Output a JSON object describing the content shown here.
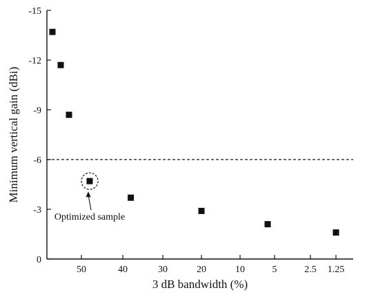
{
  "chart_data": {
    "type": "scatter",
    "title": "",
    "xlabel": "3 dB bandwidth (%)",
    "ylabel": "Minimum vertical gain (dBi)",
    "x_tick_labels": [
      "50",
      "40",
      "30",
      "20",
      "10",
      "5",
      "2.5",
      "1.25"
    ],
    "y_tick_labels": [
      "0",
      "-3",
      "-6",
      "-9",
      "-12",
      "-15"
    ],
    "y_ticks": [
      0,
      -3,
      -6,
      -9,
      -12,
      -15
    ],
    "ylim": [
      0,
      -15
    ],
    "x_scale": "categorical (non-linear, decreasing bandwidth)",
    "y_inverted": true,
    "grid": false,
    "reference_line": {
      "y": -6,
      "style": "dashed"
    },
    "points": [
      {
        "x": 57,
        "y": -13.7
      },
      {
        "x": 55,
        "y": -11.7
      },
      {
        "x": 53,
        "y": -8.7
      },
      {
        "x": 48,
        "y": -4.7,
        "highlighted": true
      },
      {
        "x": 38,
        "y": -3.7
      },
      {
        "x": 20,
        "y": -2.9
      },
      {
        "x": 6,
        "y": -2.1
      },
      {
        "x": 1.25,
        "y": -1.6
      }
    ],
    "annotation": {
      "text": "Optimized sample"
    },
    "marker": "square",
    "colors": {
      "marker": "#111111",
      "axis": "#111111"
    }
  }
}
